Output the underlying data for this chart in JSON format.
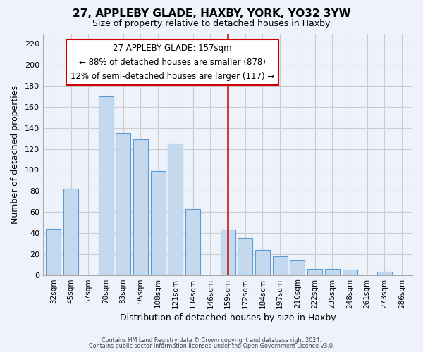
{
  "title": "27, APPLEBY GLADE, HAXBY, YORK, YO32 3YW",
  "subtitle": "Size of property relative to detached houses in Haxby",
  "xlabel": "Distribution of detached houses by size in Haxby",
  "ylabel": "Number of detached properties",
  "categories": [
    "32sqm",
    "45sqm",
    "57sqm",
    "70sqm",
    "83sqm",
    "95sqm",
    "108sqm",
    "121sqm",
    "134sqm",
    "146sqm",
    "159sqm",
    "172sqm",
    "184sqm",
    "197sqm",
    "210sqm",
    "222sqm",
    "235sqm",
    "248sqm",
    "261sqm",
    "273sqm",
    "286sqm"
  ],
  "values": [
    44,
    82,
    0,
    170,
    135,
    129,
    99,
    125,
    63,
    0,
    43,
    35,
    24,
    18,
    14,
    6,
    6,
    5,
    0,
    3,
    0
  ],
  "bar_color": "#c5d9ee",
  "bar_edge_color": "#5b9bd5",
  "vline_x_index": 10,
  "vline_color": "#cc0000",
  "annotation_title": "27 APPLEBY GLADE: 157sqm",
  "annotation_line1": "← 88% of detached houses are smaller (878)",
  "annotation_line2": "12% of semi-detached houses are larger (117) →",
  "annotation_box_color": "#ffffff",
  "annotation_box_edge_color": "#cc0000",
  "ylim": [
    0,
    230
  ],
  "yticks": [
    0,
    20,
    40,
    60,
    80,
    100,
    120,
    140,
    160,
    180,
    200,
    220
  ],
  "grid_color": "#cccccc",
  "background_color": "#eef2fb",
  "footer_line1": "Contains HM Land Registry data © Crown copyright and database right 2024.",
  "footer_line2": "Contains public sector information licensed under the Open Government Licence v3.0."
}
